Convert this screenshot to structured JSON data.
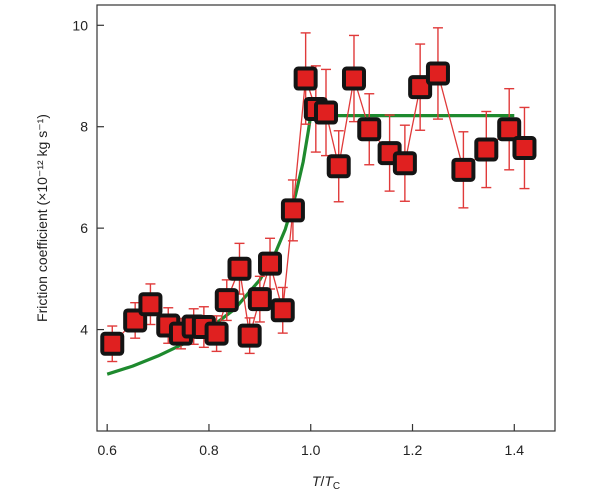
{
  "chart_data": {
    "type": "scatter",
    "title": "",
    "xlabel": "T/T_C",
    "xlabel_parts": {
      "main": "T",
      "slash": "/",
      "sub_main": "T",
      "subscript": "C"
    },
    "ylabel": "Friction coefficient (×10⁻¹² kg s⁻¹)",
    "xlim": [
      0.58,
      1.48
    ],
    "ylim": [
      2.0,
      10.4
    ],
    "xticks": [
      0.6,
      0.8,
      1.0,
      1.2,
      1.4
    ],
    "xtick_labels": [
      "0.6",
      "0.8",
      "1.0",
      "1.2",
      "1.4"
    ],
    "yticks": [
      4,
      6,
      8,
      10
    ],
    "ytick_labels": [
      "4",
      "6",
      "8",
      "10"
    ],
    "grid": false,
    "colors": {
      "marker_fill": "#e02020",
      "marker_edge": "#141414",
      "error_bar": "#e03a3a",
      "fit_line": "#1e8a2e",
      "axis": "#333333"
    },
    "series": [
      {
        "kind": "points",
        "x": [
          0.61,
          0.655,
          0.685,
          0.72,
          0.745,
          0.77,
          0.79,
          0.815,
          0.835,
          0.86,
          0.88,
          0.9,
          0.92,
          0.945,
          0.965,
          0.99,
          1.01,
          1.03,
          1.055,
          1.085,
          1.115,
          1.155,
          1.185,
          1.215,
          1.25,
          1.3,
          1.345,
          1.39,
          1.42
        ],
        "y": [
          3.72,
          4.18,
          4.5,
          4.08,
          3.92,
          4.06,
          4.05,
          3.92,
          4.58,
          5.2,
          3.88,
          4.6,
          5.3,
          4.38,
          6.35,
          8.95,
          8.35,
          8.28,
          7.22,
          8.95,
          7.95,
          7.48,
          7.28,
          8.78,
          9.05,
          7.15,
          7.55,
          7.95,
          7.58
        ],
        "yerr": [
          0.35,
          0.35,
          0.4,
          0.35,
          0.3,
          0.35,
          0.4,
          0.35,
          0.4,
          0.5,
          0.35,
          0.45,
          0.5,
          0.45,
          0.6,
          0.9,
          0.85,
          0.85,
          0.7,
          0.85,
          0.7,
          0.75,
          0.75,
          0.85,
          0.9,
          0.75,
          0.75,
          0.8,
          0.8
        ]
      },
      {
        "kind": "fit",
        "x": [
          0.6,
          0.65,
          0.7,
          0.75,
          0.8,
          0.85,
          0.9,
          0.93,
          0.95,
          0.97,
          0.985,
          0.995,
          1.0,
          1.05,
          1.1,
          1.2,
          1.3,
          1.4
        ],
        "y": [
          3.12,
          3.28,
          3.48,
          3.72,
          4.02,
          4.4,
          4.98,
          5.5,
          5.98,
          6.65,
          7.3,
          7.9,
          8.22,
          8.22,
          8.22,
          8.22,
          8.22,
          8.22
        ]
      }
    ]
  }
}
